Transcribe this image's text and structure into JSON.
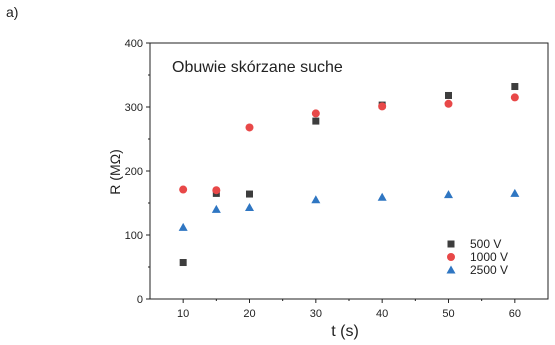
{
  "panel_label": "a)",
  "chart_data": {
    "type": "scatter",
    "title": "Obuwie skórzane suche",
    "xlabel": "t  (s)",
    "ylabel": "R (MΩ)",
    "xlim": [
      5,
      65
    ],
    "ylim": [
      0,
      400
    ],
    "xticks": [
      10,
      20,
      30,
      40,
      50,
      60
    ],
    "yticks": [
      0,
      100,
      200,
      300,
      400
    ],
    "grid": false,
    "legend_position": "bottom-right",
    "series": [
      {
        "name": "500 V",
        "marker": "square",
        "color": "#3d3d3d",
        "x": [
          10,
          15,
          20,
          30,
          40,
          50,
          60
        ],
        "y": [
          57,
          165,
          164,
          278,
          303,
          318,
          332
        ]
      },
      {
        "name": "1000 V",
        "marker": "circle",
        "color": "#e84848",
        "x": [
          10,
          15,
          20,
          30,
          40,
          50,
          60
        ],
        "y": [
          171,
          170,
          268,
          290,
          301,
          305,
          315
        ]
      },
      {
        "name": "2500 V",
        "marker": "triangle",
        "color": "#2f76c2",
        "x": [
          10,
          15,
          20,
          30,
          40,
          50,
          60
        ],
        "y": [
          112,
          140,
          143,
          155,
          159,
          163,
          165
        ]
      }
    ]
  }
}
